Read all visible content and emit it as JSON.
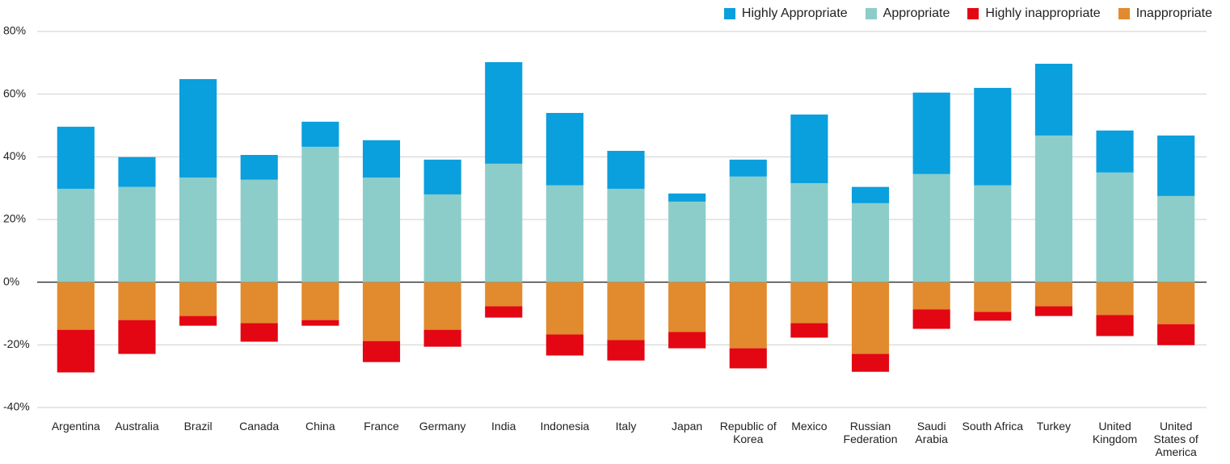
{
  "chart_data": {
    "type": "diverging_stacked_bar",
    "categories": [
      "Argentina",
      "Australia",
      "Brazil",
      "Canada",
      "China",
      "France",
      "Germany",
      "India",
      "Indonesia",
      "Italy",
      "Japan",
      "Republic of Korea",
      "Mexico",
      "Russian Federation",
      "Saudi Arabia",
      "South Africa",
      "Turkey",
      "United Kingdom",
      "United States of America"
    ],
    "series": [
      {
        "name": "Highly Appropriate",
        "color": "#0a9fdd",
        "values": [
          19.8,
          9.5,
          31.4,
          7.9,
          8.0,
          11.9,
          11.1,
          32.4,
          23.1,
          12.1,
          2.6,
          5.4,
          21.9,
          5.2,
          26.0,
          31.1,
          22.9,
          13.4,
          19.3
        ]
      },
      {
        "name": "Appropriate",
        "color": "#8ccdc9",
        "values": [
          29.8,
          30.4,
          33.4,
          32.7,
          43.2,
          33.4,
          28.0,
          37.8,
          30.9,
          29.8,
          25.7,
          33.7,
          31.6,
          25.2,
          34.5,
          30.9,
          46.8,
          35.0,
          27.5
        ]
      },
      {
        "name": "Highly inappropriate",
        "color": "#e30613",
        "values": [
          -13.6,
          -10.8,
          -3.1,
          -5.9,
          -1.8,
          -6.7,
          -5.4,
          -3.6,
          -6.7,
          -6.5,
          -5.2,
          -6.4,
          -4.6,
          -5.7,
          -6.2,
          -2.8,
          -3.1,
          -6.7,
          -6.7
        ]
      },
      {
        "name": "Inappropriate",
        "color": "#e28a2e",
        "values": [
          -15.2,
          -12.1,
          -10.8,
          -13.1,
          -12.1,
          -18.8,
          -15.2,
          -7.7,
          -16.7,
          -18.5,
          -15.9,
          -21.1,
          -13.1,
          -22.9,
          -8.7,
          -9.5,
          -7.7,
          -10.5,
          -13.4
        ]
      }
    ],
    "ylim": [
      -40,
      80
    ],
    "yticks": [
      {
        "value": -40,
        "label": "-40%"
      },
      {
        "value": -20,
        "label": "-20%"
      },
      {
        "value": 0,
        "label": "0%"
      },
      {
        "value": 20,
        "label": "20%"
      },
      {
        "value": 40,
        "label": "40%"
      },
      {
        "value": 60,
        "label": "60%"
      },
      {
        "value": 80,
        "label": "80%"
      }
    ],
    "grid": true,
    "legend": "top-right"
  }
}
